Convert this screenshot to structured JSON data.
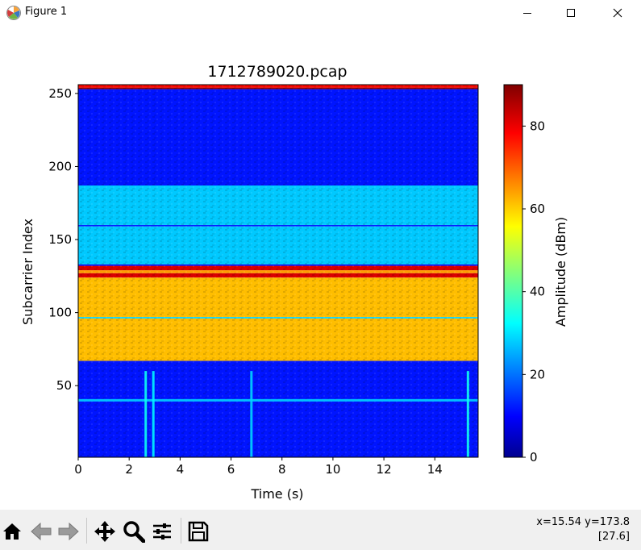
{
  "window": {
    "title": "Figure 1",
    "icon": "matplotlib-icon",
    "controls": [
      "minimize-icon",
      "maximize-icon",
      "close-icon"
    ]
  },
  "toolbar": {
    "buttons": [
      "home-icon",
      "back-icon",
      "forward-icon",
      "pan-icon",
      "zoom-icon",
      "configure-subplots-icon",
      "save-icon"
    ],
    "coords_line1": "x=15.54 y=173.8",
    "coords_line2": "[27.6]"
  },
  "chart_data": {
    "type": "heatmap",
    "title": "1712789020.pcap",
    "xlabel": "Time (s)",
    "ylabel": "Subcarrier Index",
    "xlim": [
      0,
      15.7
    ],
    "ylim": [
      1,
      256
    ],
    "xticks": [
      0,
      2,
      4,
      6,
      8,
      10,
      12,
      14
    ],
    "yticks": [
      50,
      100,
      150,
      200,
      250
    ],
    "colormap": "jet",
    "colorbar": {
      "label": "Amplitude (dBm)",
      "range": [
        0,
        90
      ],
      "ticks": [
        0,
        20,
        40,
        60,
        80
      ]
    },
    "bands": [
      {
        "from": 1,
        "to": 67,
        "amplitude": 13
      },
      {
        "from": 67,
        "to": 96,
        "amplitude": 62
      },
      {
        "from": 96,
        "to": 97,
        "amplitude": 30
      },
      {
        "from": 97,
        "to": 124,
        "amplitude": 62
      },
      {
        "from": 124,
        "to": 127,
        "amplitude": 82
      },
      {
        "from": 127,
        "to": 129,
        "amplitude": 65
      },
      {
        "from": 129,
        "to": 132,
        "amplitude": 82
      },
      {
        "from": 132,
        "to": 133,
        "amplitude": 10
      },
      {
        "from": 133,
        "to": 159,
        "amplitude": 29
      },
      {
        "from": 159,
        "to": 160,
        "amplitude": 14
      },
      {
        "from": 160,
        "to": 187,
        "amplitude": 29
      },
      {
        "from": 187,
        "to": 253,
        "amplitude": 13
      },
      {
        "from": 253,
        "to": 254,
        "amplitude": 88
      },
      {
        "from": 254,
        "to": 256,
        "amplitude": 78
      }
    ],
    "horizontal_lines": [
      {
        "y": 40,
        "amplitude": 30
      }
    ],
    "vertical_lines": [
      {
        "x": 2.65,
        "amplitude": 35
      },
      {
        "x": 2.95,
        "amplitude": 33
      },
      {
        "x": 6.8,
        "amplitude": 30
      },
      {
        "x": 15.3,
        "amplitude": 35
      }
    ]
  },
  "colors": {
    "colormap_stops": [
      "#00008f",
      "#0000ff",
      "#00ffff",
      "#ffff00",
      "#ff0000",
      "#800000"
    ]
  }
}
